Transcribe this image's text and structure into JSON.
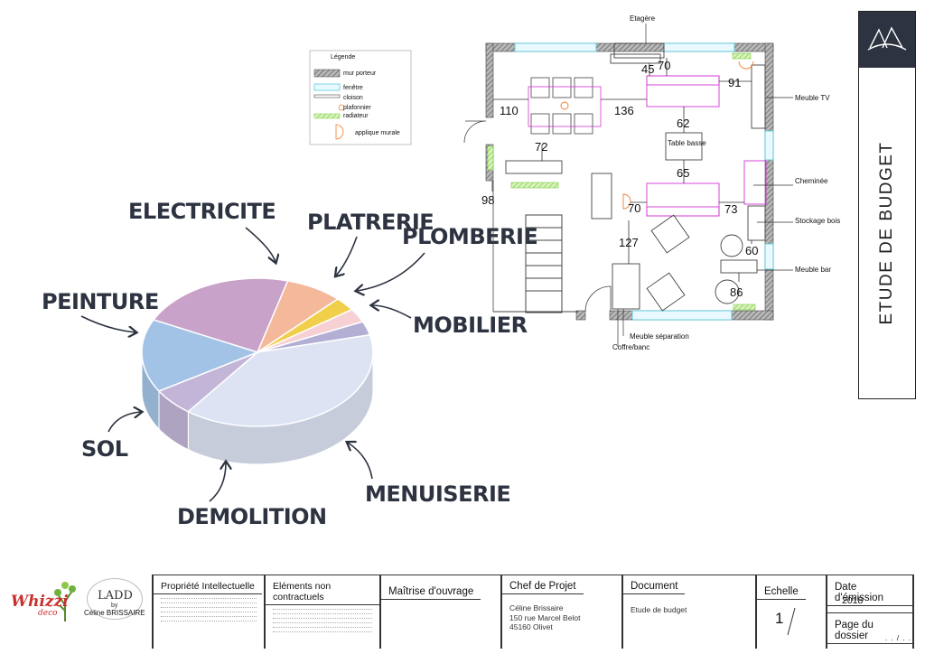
{
  "chart_data": {
    "type": "pie",
    "categories": [
      "PEINTURE",
      "ELECTRICITE",
      "PLATRERIE",
      "PLOMBERIE",
      "MOBILIER",
      "MENUISERIE",
      "DEMOLITION",
      "SOL"
    ],
    "values": [
      22,
      8,
      3,
      3,
      3,
      39,
      6,
      16
    ],
    "colors": [
      "#c8a2c8",
      "#f4b89a",
      "#f2cf4a",
      "#f7d0d3",
      "#b3afd4",
      "#dde3f3",
      "#c2b5d8",
      "#a3c3e6"
    ]
  },
  "plan": {
    "legend": {
      "title": "Légende",
      "items": [
        "mur porteur",
        "fenêtre",
        "cloison",
        "plafonnier",
        "radiateur",
        "applique murale"
      ]
    },
    "labels": {
      "etagere": "Etagère",
      "meuble_tv": "Meuble TV",
      "table_basse": "Table basse",
      "cheminee": "Cheminée",
      "stockage_bois": "Stockage bois",
      "meuble_bar": "Meuble bar",
      "meuble_separation": "Meuble séparation",
      "coffre_banc": "Coffre/banc"
    },
    "dimensions": {
      "d45": "45",
      "d70a": "70",
      "d91": "91",
      "d110": "110",
      "d136": "136",
      "d62": "62",
      "d72": "72",
      "d65": "65",
      "d98": "98",
      "d70b": "70",
      "d73": "73",
      "d127": "127",
      "d60": "60",
      "d86": "86"
    }
  },
  "title_block": {
    "vertical_title": "ETUDE DE BUDGET"
  },
  "footer": {
    "logo_whizzi": "Whizzi",
    "logo_whizzi_sub": "deco",
    "logo_ladd": "LADD",
    "logo_ladd_by": "by",
    "logo_ladd_name": "Céline BRISSAIRE",
    "propriete_title": "Propriété Intellectuelle",
    "elements_title": "Eléments non contractuels",
    "maitrise_title": "Maîtrise d'ouvrage",
    "chef_title": "Chef de Projet",
    "chef_line1": "Céline Brissaire",
    "chef_line2": "150 rue Marcel Belot",
    "chef_line3": "45160 Olivet",
    "document_title": "Document",
    "document_value": "Etude de budget",
    "echelle_title": "Echelle",
    "echelle_value": "1",
    "date_title": "Date d'émission",
    "date_value": "2018",
    "page_title": "Page du dossier",
    "page_value": ". . / . ."
  }
}
